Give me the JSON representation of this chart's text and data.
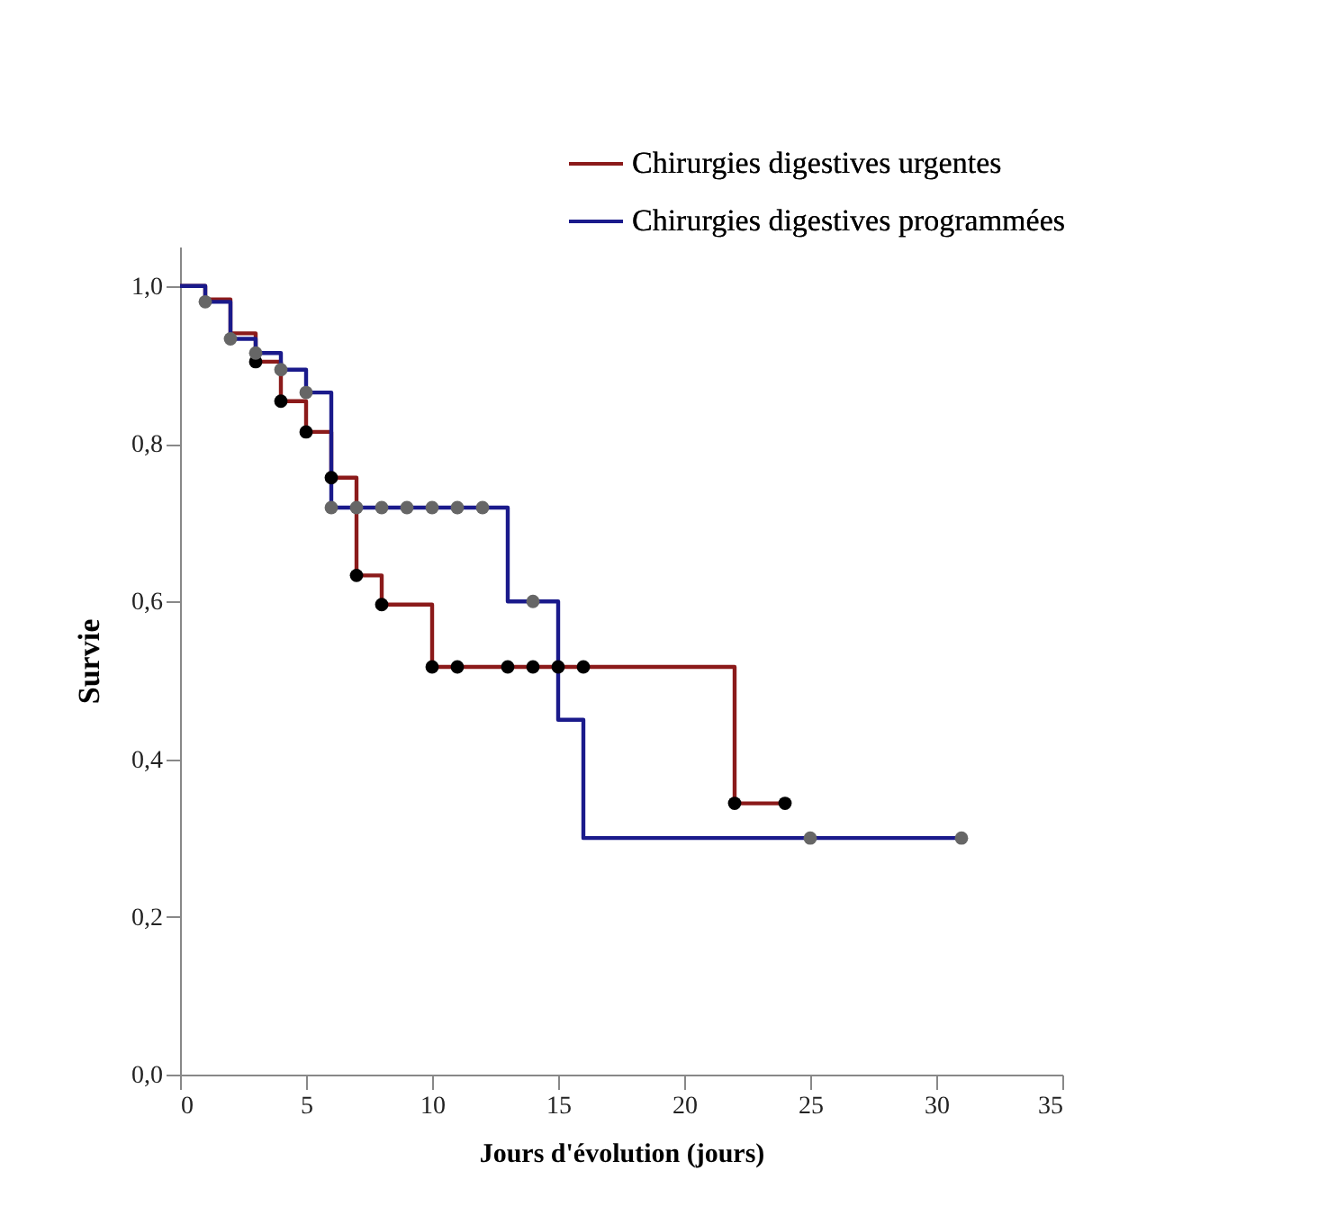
{
  "chart_data": {
    "type": "step",
    "xlabel": "Jours d'évolution (jours)",
    "ylabel": "Survie",
    "xlim": [
      0,
      35
    ],
    "xticks": [
      0,
      5,
      10,
      15,
      20,
      25,
      30,
      35
    ],
    "ylim": [
      0,
      1.05
    ],
    "yticks": [
      {
        "value": 0,
        "label": "0,0"
      },
      {
        "value": 0.2,
        "label": "0,2"
      },
      {
        "value": 0.4,
        "label": "0,4"
      },
      {
        "value": 0.6,
        "label": "0,6"
      },
      {
        "value": 0.8,
        "label": "0,8"
      },
      {
        "value": 1,
        "label": "1,0"
      }
    ],
    "grid": false,
    "legend": "top right",
    "series": [
      {
        "name": "Chirurgies digestives urgentes",
        "line_style": "solid",
        "color": "#8b1a1a",
        "x": [
          0,
          1,
          2,
          3,
          4,
          5,
          6,
          7,
          8,
          10,
          22,
          24
        ],
        "values": [
          1,
          0.983,
          0.94,
          0.904,
          0.854,
          0.815,
          0.757,
          0.633,
          0.596,
          0.517,
          0.344,
          0.344
        ]
      },
      {
        "name": "Chirurgies digestives programmées",
        "line_style": "solid",
        "color": "#1a1a8b",
        "x": [
          0,
          1,
          2,
          3,
          4,
          5,
          6,
          13,
          15,
          16,
          31
        ],
        "values": [
          1,
          0.98,
          0.933,
          0.915,
          0.894,
          0.865,
          0.719,
          0.6,
          0.45,
          0.3,
          0.3
        ]
      },
      {
        "type": "scatter",
        "color": "#000000",
        "marker": "circle",
        "x": [
          3,
          4,
          5,
          6,
          7,
          8,
          10,
          11,
          13,
          14,
          15,
          16,
          22,
          24
        ],
        "values": [
          0.904,
          0.854,
          0.815,
          0.757,
          0.633,
          0.596,
          0.517,
          0.517,
          0.517,
          0.517,
          0.517,
          0.517,
          0.344,
          0.344
        ]
      },
      {
        "type": "scatter",
        "color": "#666666",
        "marker": "circle",
        "x": [
          1,
          2,
          3,
          4,
          5,
          6,
          7,
          8,
          9,
          10,
          11,
          12,
          14,
          25,
          31
        ],
        "values": [
          0.98,
          0.933,
          0.915,
          0.894,
          0.865,
          0.719,
          0.719,
          0.719,
          0.719,
          0.719,
          0.719,
          0.719,
          0.6,
          0.3,
          0.3
        ]
      }
    ]
  }
}
